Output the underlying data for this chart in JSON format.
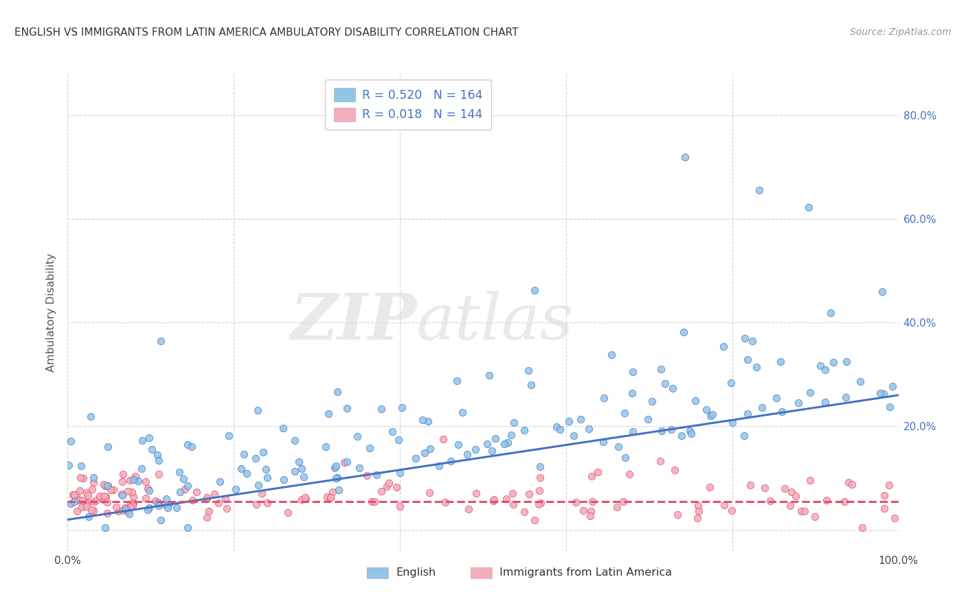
{
  "title": "ENGLISH VS IMMIGRANTS FROM LATIN AMERICA AMBULATORY DISABILITY CORRELATION CHART",
  "source": "Source: ZipAtlas.com",
  "ylabel": "Ambulatory Disability",
  "xlim": [
    0.0,
    1.0
  ],
  "ylim": [
    -0.04,
    0.88
  ],
  "yticks": [
    0.0,
    0.2,
    0.4,
    0.6,
    0.8
  ],
  "xticks": [
    0.0,
    0.2,
    0.4,
    0.6,
    0.8,
    1.0
  ],
  "xtick_labels": [
    "0.0%",
    "",
    "",
    "",
    "",
    "100.0%"
  ],
  "ytick_labels_right": [
    "",
    "20.0%",
    "40.0%",
    "60.0%",
    "80.0%"
  ],
  "english_R": 0.52,
  "english_N": 164,
  "immigrant_R": 0.018,
  "immigrant_N": 144,
  "english_color": "#92C5E8",
  "immigrant_color": "#F4AEBB",
  "english_line_color": "#4472C4",
  "immigrant_line_color": "#E05070",
  "background_color": "#FFFFFF",
  "grid_color": "#CCCCCC",
  "legend_R_color": "#4472C4",
  "title_color": "#333333",
  "source_color": "#999999",
  "ylabel_color": "#555555",
  "tick_color": "#4472C4",
  "eng_line_start_y": 0.02,
  "eng_line_end_y": 0.26,
  "imm_line_start_y": 0.055,
  "imm_line_end_y": 0.055
}
